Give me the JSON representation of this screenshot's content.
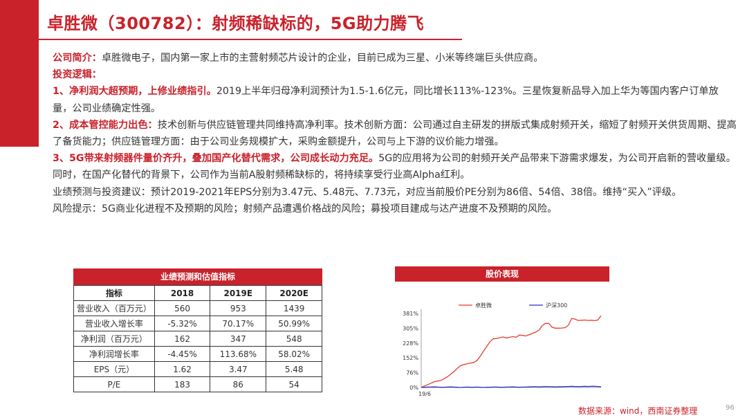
{
  "header": {
    "title": "卓胜微（300782）：射频稀缺标的，5G助力腾飞"
  },
  "body": {
    "intro_label": "公司简介：",
    "intro_text": "卓胜微电子，国内第一家上市的主营射频芯片设计的企业，目前已成为三星、小米等终端巨头供应商。",
    "logic_label": "投资逻辑：",
    "point1_label": "1、净利润大超预期，上修业绩指引。",
    "point1_text": "2019上半年归母净利润预计为1.5-1.6亿元，同比增长113%-123%。三星恢复新品导入加上华为等国内客户订单放量，公司业绩确定性强。",
    "point2_label": "2、成本管控能力出色：",
    "point2_text": "技术创新与供应链管理共同维持高净利率。技术创新方面：公司通过自主研发的拼版式集成射频开关，缩短了射频开关供货周期、提高了备货能力；供应链管理方面：由于公司业务规模扩大，采购金额提升，公司与上下游的议价能力增强。",
    "point3_label": "3、5G带来射频器件量价齐升，叠加国产化替代需求，公司成长动力充足。",
    "point3_text": "5G的应用将为公司的射频开关产品带来下游需求爆发，为公司开启新的营收量级。同时，在国产化替代的背景下，公司作为当前A股射频稀缺标的，将持续享受行业高Alpha红利。",
    "forecast_text": "业绩预测与投资建议：预计2019-2021年EPS分别为3.47元、5.48元、7.73元，对应当前股价PE分别为86倍、54倍、38倍。维持“买入”评级。",
    "risk_text": "风险提示：5G商业化进程不及预期的风险；射频产品遭遇价格战的风险；募投项目建成与达产进度不及预期的风险。"
  },
  "table": {
    "title": "业绩预测和估值指标",
    "headers": [
      "指标",
      "2018",
      "2019E",
      "2020E"
    ],
    "rows": [
      [
        "营业收入（百万元）",
        "560",
        "953",
        "1439"
      ],
      [
        "营业收入增长率",
        "-5.32%",
        "70.17%",
        "50.99%"
      ],
      [
        "净利润（百万元）",
        "162",
        "347",
        "548"
      ],
      [
        "净利润增长率",
        "-4.45%",
        "113.68%",
        "58.02%"
      ],
      [
        "EPS（元）",
        "1.62",
        "3.47",
        "5.48"
      ],
      [
        "P/E",
        "183",
        "86",
        "54"
      ]
    ]
  },
  "chart_data": {
    "type": "line",
    "title": "股价表现",
    "x_start_label": "19/6",
    "y_ticks": [
      "0%",
      "76%",
      "152%",
      "228%",
      "305%",
      "381%"
    ],
    "ylim": [
      0,
      381
    ],
    "legend_placement": "top",
    "series": [
      {
        "name": "卓胜微",
        "color": "#e83a2f",
        "values": [
          0,
          8,
          15,
          22,
          30,
          33,
          36,
          45,
          55,
          68,
          82,
          98,
          112,
          118,
          122,
          125,
          128,
          138,
          160,
          185,
          210,
          235,
          250,
          252,
          256,
          260,
          255,
          258,
          262,
          258,
          270,
          268,
          265,
          272,
          278,
          285,
          295,
          318,
          330,
          330,
          310,
          305,
          305,
          306,
          308,
          320,
          355,
          352,
          345,
          346,
          347,
          345,
          346,
          344,
          347,
          370
        ]
      },
      {
        "name": "沪深300",
        "color": "#2b2fc0",
        "values": [
          0,
          1,
          2,
          2,
          3,
          2,
          1,
          1,
          2,
          3,
          2,
          1,
          0,
          1,
          2,
          1,
          1,
          2,
          1,
          0,
          1,
          1,
          2,
          2,
          1,
          1,
          2,
          2,
          3,
          2,
          1,
          2,
          2,
          3,
          4,
          4,
          3,
          4,
          5,
          4,
          4,
          3,
          4,
          4,
          5,
          5,
          6,
          5,
          5,
          5,
          6,
          5,
          6,
          6,
          5,
          4
        ]
      }
    ]
  },
  "footer": {
    "source": "数据来源：wind，西南证券整理",
    "page": "96"
  }
}
